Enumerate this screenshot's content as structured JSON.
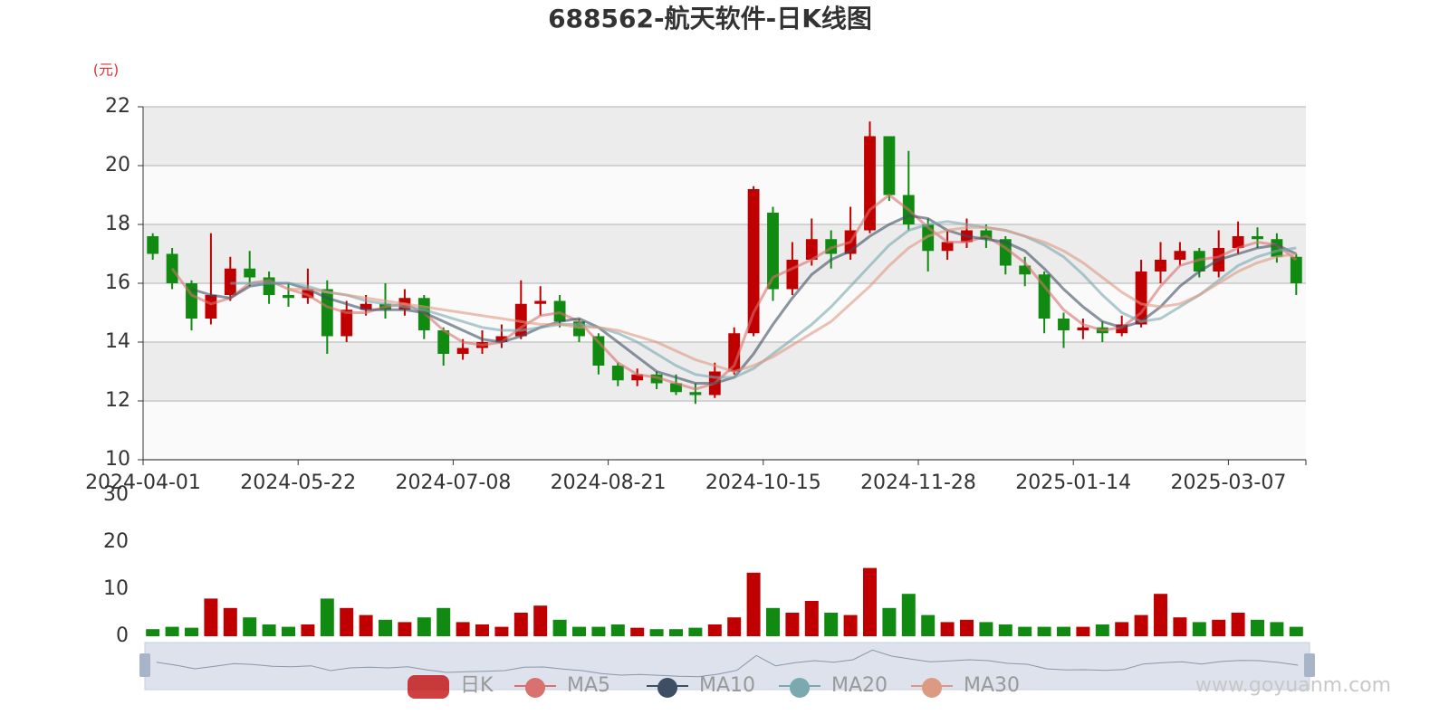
{
  "chart_data": {
    "type": "candlestick",
    "title": "688562-航天软件-日K线图",
    "y_unit": "(元)",
    "watermark": "www.goyuanm.com",
    "categories": [
      "2024-04-01",
      null,
      null,
      null,
      null,
      null,
      null,
      null,
      "2024-05-22",
      null,
      null,
      null,
      null,
      null,
      null,
      null,
      "2024-07-08",
      null,
      null,
      null,
      null,
      null,
      null,
      null,
      "2024-08-21",
      null,
      null,
      null,
      null,
      null,
      null,
      null,
      "2024-10-15",
      null,
      null,
      null,
      null,
      null,
      null,
      null,
      "2024-11-28",
      null,
      null,
      null,
      null,
      null,
      null,
      null,
      "2025-01-14",
      null,
      null,
      null,
      null,
      null,
      null,
      null,
      "2025-03-07",
      null,
      null,
      null
    ],
    "ylim": [
      10,
      22
    ],
    "yticks": [
      10,
      12,
      14,
      16,
      18,
      20,
      22
    ],
    "candles": {
      "name": "日K",
      "up_color": "#c00000",
      "down_color": "#108a10",
      "values": [
        [
          17.6,
          17.0,
          16.8,
          17.7
        ],
        [
          17.0,
          16.0,
          15.8,
          17.2
        ],
        [
          16.0,
          14.8,
          14.4,
          16.1
        ],
        [
          14.8,
          15.6,
          14.6,
          17.7
        ],
        [
          15.6,
          16.5,
          15.4,
          16.9
        ],
        [
          16.5,
          16.2,
          15.9,
          17.1
        ],
        [
          16.2,
          15.6,
          15.3,
          16.4
        ],
        [
          15.6,
          15.5,
          15.2,
          16.0
        ],
        [
          15.5,
          15.8,
          15.3,
          16.5
        ],
        [
          15.8,
          14.2,
          13.6,
          16.1
        ],
        [
          14.2,
          15.1,
          14.0,
          15.4
        ],
        [
          15.1,
          15.3,
          14.9,
          15.6
        ],
        [
          15.3,
          15.1,
          14.8,
          16.0
        ],
        [
          15.1,
          15.5,
          14.9,
          15.8
        ],
        [
          15.5,
          14.4,
          14.1,
          15.6
        ],
        [
          14.4,
          13.6,
          13.2,
          14.5
        ],
        [
          13.6,
          13.8,
          13.4,
          14.1
        ],
        [
          13.8,
          14.0,
          13.6,
          14.4
        ],
        [
          14.0,
          14.2,
          13.8,
          14.6
        ],
        [
          14.2,
          15.3,
          14.1,
          16.1
        ],
        [
          15.3,
          15.4,
          14.9,
          15.9
        ],
        [
          15.4,
          14.7,
          14.5,
          15.6
        ],
        [
          14.7,
          14.2,
          14.0,
          14.8
        ],
        [
          14.2,
          13.2,
          12.9,
          14.3
        ],
        [
          13.2,
          12.7,
          12.5,
          13.3
        ],
        [
          12.7,
          12.9,
          12.5,
          13.1
        ],
        [
          12.9,
          12.6,
          12.4,
          13.0
        ],
        [
          12.6,
          12.3,
          12.2,
          12.9
        ],
        [
          12.3,
          12.2,
          11.9,
          12.6
        ],
        [
          12.2,
          13.0,
          12.1,
          13.3
        ],
        [
          13.0,
          14.3,
          12.9,
          14.5
        ],
        [
          14.3,
          19.2,
          14.2,
          19.3
        ],
        [
          18.4,
          15.8,
          15.4,
          18.6
        ],
        [
          15.8,
          16.8,
          15.6,
          17.4
        ],
        [
          16.8,
          17.5,
          16.6,
          18.2
        ],
        [
          17.5,
          17.0,
          16.5,
          17.8
        ],
        [
          17.0,
          17.8,
          16.8,
          18.6
        ],
        [
          17.8,
          21.0,
          17.7,
          21.5
        ],
        [
          21.0,
          19.0,
          18.8,
          20.8
        ],
        [
          19.0,
          18.0,
          17.8,
          20.5
        ],
        [
          18.0,
          17.1,
          16.4,
          18.2
        ],
        [
          17.1,
          17.4,
          16.8,
          17.8
        ],
        [
          17.4,
          17.8,
          17.2,
          18.2
        ],
        [
          17.8,
          17.5,
          17.2,
          18.0
        ],
        [
          17.5,
          16.6,
          16.3,
          17.6
        ],
        [
          16.6,
          16.3,
          15.9,
          16.9
        ],
        [
          16.3,
          14.8,
          14.3,
          16.4
        ],
        [
          14.8,
          14.4,
          13.8,
          15.0
        ],
        [
          14.4,
          14.5,
          14.1,
          14.8
        ],
        [
          14.5,
          14.3,
          14.0,
          14.7
        ],
        [
          14.3,
          14.6,
          14.2,
          14.9
        ],
        [
          14.6,
          16.4,
          14.5,
          16.8
        ],
        [
          16.4,
          16.8,
          16.0,
          17.4
        ],
        [
          16.8,
          17.1,
          16.6,
          17.4
        ],
        [
          17.1,
          16.4,
          16.2,
          17.2
        ],
        [
          16.4,
          17.2,
          16.2,
          17.8
        ],
        [
          17.2,
          17.6,
          17.0,
          18.1
        ],
        [
          17.6,
          17.5,
          17.2,
          17.9
        ],
        [
          17.5,
          16.9,
          16.7,
          17.7
        ],
        [
          16.9,
          16.0,
          15.6,
          17.0
        ]
      ]
    },
    "series": [
      {
        "name": "MA5",
        "color": "#d9716e",
        "values": [
          null,
          16.5,
          15.6,
          15.3,
          15.5,
          16.0,
          16.1,
          15.8,
          15.6,
          15.2,
          15.0,
          15.0,
          15.2,
          15.3,
          15.0,
          14.4,
          14.0,
          13.9,
          14.0,
          14.5,
          14.9,
          15.0,
          14.7,
          14.0,
          13.3,
          12.9,
          12.8,
          12.6,
          12.4,
          12.6,
          13.2,
          15.0,
          16.2,
          16.5,
          16.8,
          17.2,
          17.4,
          18.5,
          19.0,
          18.5,
          17.9,
          17.4,
          17.4,
          17.6,
          17.2,
          16.7,
          15.9,
          15.1,
          14.6,
          14.4,
          14.5,
          15.0,
          15.9,
          16.6,
          16.8,
          16.9,
          17.2,
          17.4,
          17.3,
          16.8
        ]
      },
      {
        "name": "MA10",
        "color": "#3f4f63",
        "values": [
          null,
          null,
          15.8,
          15.6,
          15.5,
          15.9,
          16.0,
          16.0,
          15.8,
          15.5,
          15.3,
          15.1,
          15.1,
          15.1,
          15.0,
          14.7,
          14.4,
          14.1,
          14.0,
          14.2,
          14.5,
          14.7,
          14.8,
          14.5,
          14.0,
          13.5,
          13.0,
          12.8,
          12.6,
          12.6,
          12.8,
          13.6,
          14.6,
          15.5,
          16.3,
          16.8,
          17.1,
          17.6,
          18.0,
          18.3,
          18.2,
          17.8,
          17.6,
          17.5,
          17.4,
          17.1,
          16.5,
          15.8,
          15.2,
          14.7,
          14.5,
          14.7,
          15.2,
          15.9,
          16.4,
          16.8,
          17.0,
          17.2,
          17.3,
          17.0
        ]
      },
      {
        "name": "MA20",
        "color": "#7aa9b0",
        "values": [
          null,
          null,
          null,
          null,
          16.0,
          16.0,
          16.0,
          16.0,
          15.9,
          15.7,
          15.6,
          15.4,
          15.3,
          15.2,
          15.1,
          14.9,
          14.7,
          14.5,
          14.4,
          14.4,
          14.5,
          14.6,
          14.6,
          14.5,
          14.3,
          14.0,
          13.6,
          13.2,
          12.9,
          12.8,
          12.8,
          13.1,
          13.6,
          14.1,
          14.6,
          15.2,
          15.9,
          16.6,
          17.3,
          17.8,
          18.0,
          18.1,
          18.0,
          17.9,
          17.8,
          17.6,
          17.3,
          16.9,
          16.3,
          15.6,
          15.0,
          14.7,
          14.8,
          15.2,
          15.6,
          16.1,
          16.6,
          16.9,
          17.1,
          17.2
        ]
      },
      {
        "name": "MA30",
        "color": "#dd9a82",
        "values": [
          null,
          null,
          null,
          null,
          null,
          null,
          null,
          15.8,
          15.8,
          15.7,
          15.6,
          15.5,
          15.4,
          15.3,
          15.2,
          15.1,
          15.0,
          14.9,
          14.8,
          14.7,
          14.6,
          14.6,
          14.5,
          14.5,
          14.4,
          14.2,
          14.0,
          13.7,
          13.4,
          13.2,
          13.0,
          13.2,
          13.5,
          13.9,
          14.3,
          14.7,
          15.3,
          15.9,
          16.6,
          17.2,
          17.6,
          17.8,
          17.9,
          17.9,
          17.8,
          17.6,
          17.4,
          17.1,
          16.7,
          16.2,
          15.7,
          15.3,
          15.2,
          15.3,
          15.6,
          16.0,
          16.4,
          16.7,
          16.9,
          17.0
        ]
      }
    ],
    "volume": {
      "ylim": [
        0,
        30
      ],
      "yticks": [
        0,
        10,
        20,
        30
      ],
      "values": [
        1.5,
        2.0,
        1.8,
        8.0,
        6.0,
        4.0,
        2.5,
        2.0,
        2.5,
        8.0,
        6.0,
        4.5,
        3.5,
        3.0,
        4.0,
        6.0,
        3.0,
        2.5,
        2.0,
        5.0,
        6.5,
        3.5,
        2.0,
        2.0,
        2.5,
        1.8,
        1.5,
        1.5,
        1.8,
        2.5,
        4.0,
        13.5,
        6.0,
        5.0,
        7.5,
        5.0,
        4.5,
        14.5,
        6.0,
        9.0,
        4.5,
        3.0,
        3.5,
        3.0,
        2.5,
        2.0,
        2.0,
        2.0,
        2.0,
        2.5,
        3.0,
        4.5,
        9.0,
        4.0,
        3.0,
        3.5,
        5.0,
        3.5,
        3.0,
        2.0
      ]
    }
  }
}
